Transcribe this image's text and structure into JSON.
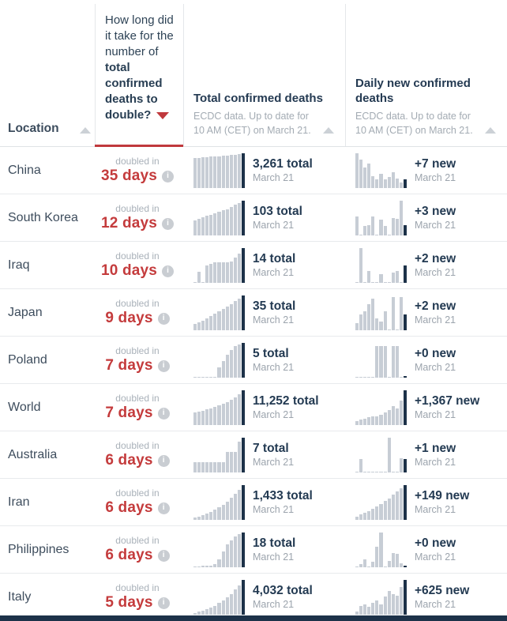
{
  "header": {
    "location_label": "Location",
    "question_regular": "How long did it take for the number of ",
    "question_bold": "total confirmed deaths to double?",
    "total_col_title": "Total confirmed deaths",
    "total_col_subtitle": "ECDC data. Up to date for 10 AM (CET) on March 21.",
    "new_col_title": "Daily new confirmed deaths",
    "new_col_subtitle": "ECDC data. Up to date for 10 AM (CET) on March 21.",
    "sort": {
      "active_column": "doubling-time",
      "direction": "descending"
    }
  },
  "labels": {
    "doubled_in_prefix": "doubled in",
    "info_icon_glyph": "i"
  },
  "colors": {
    "accent_red": "#c0393d",
    "text_navy": "#243a52",
    "bar_gray": "#c7cdd5",
    "bar_navy": "#1d3249",
    "muted_gray": "#a3abb3"
  },
  "rows": [
    {
      "location": "China",
      "days": "35 days",
      "total": "3,261 total",
      "total_date": "March 21",
      "new": "+7 new",
      "new_date": "March 21"
    },
    {
      "location": "South Korea",
      "days": "12 days",
      "total": "103 total",
      "total_date": "March 21",
      "new": "+3 new",
      "new_date": "March 21"
    },
    {
      "location": "Iraq",
      "days": "10 days",
      "total": "14 total",
      "total_date": "March 21",
      "new": "+2 new",
      "new_date": "March 21"
    },
    {
      "location": "Japan",
      "days": "9 days",
      "total": "35 total",
      "total_date": "March 21",
      "new": "+2 new",
      "new_date": "March 21"
    },
    {
      "location": "Poland",
      "days": "7 days",
      "total": "5 total",
      "total_date": "March 21",
      "new": "+0 new",
      "new_date": "March 21"
    },
    {
      "location": "World",
      "days": "7 days",
      "total": "11,252 total",
      "total_date": "March 21",
      "new": "+1,367 new",
      "new_date": "March 21"
    },
    {
      "location": "Australia",
      "days": "6 days",
      "total": "7 total",
      "total_date": "March 21",
      "new": "+1 new",
      "new_date": "March 21"
    },
    {
      "location": "Iran",
      "days": "6 days",
      "total": "1,433 total",
      "total_date": "March 21",
      "new": "+149 new",
      "new_date": "March 21"
    },
    {
      "location": "Philippines",
      "days": "6 days",
      "total": "18 total",
      "total_date": "March 21",
      "new": "+0 new",
      "new_date": "March 21"
    },
    {
      "location": "Italy",
      "days": "5 days",
      "total": "4,032 total",
      "total_date": "March 21",
      "new": "+625 new",
      "new_date": "March 21"
    }
  ],
  "chart_data": {
    "type": "table",
    "title": "How long did it take for the number of total confirmed deaths to double?",
    "columns": [
      "Location",
      "Doubling time (days)",
      "Total confirmed deaths (sparkline, as of March 21)",
      "Daily new confirmed deaths (sparkline, as of March 21)"
    ],
    "source_note": "ECDC data. Up to date for 10 AM (CET) on March 21.",
    "rows": [
      {
        "location": "China",
        "doubling_days": 35,
        "total_deaths": 3261,
        "new_deaths": 7,
        "total_spark": [
          86,
          87,
          88,
          89,
          90,
          91,
          92,
          93,
          94,
          95,
          96,
          97,
          100
        ],
        "new_spark": [
          100,
          82,
          58,
          70,
          35,
          25,
          42,
          25,
          32,
          45,
          28,
          15,
          25
        ]
      },
      {
        "location": "South Korea",
        "doubling_days": 12,
        "total_deaths": 103,
        "new_deaths": 3,
        "total_spark": [
          44,
          48,
          52,
          56,
          60,
          64,
          68,
          72,
          76,
          82,
          88,
          94,
          100
        ],
        "new_spark": [
          55,
          0,
          28,
          30,
          55,
          0,
          45,
          28,
          0,
          50,
          48,
          100,
          30
        ]
      },
      {
        "location": "Iraq",
        "doubling_days": 10,
        "total_deaths": 14,
        "new_deaths": 2,
        "total_spark": [
          0,
          32,
          0,
          50,
          55,
          58,
          58,
          58,
          60,
          62,
          72,
          85,
          100
        ],
        "new_spark": [
          0,
          100,
          0,
          35,
          0,
          0,
          25,
          0,
          0,
          30,
          35,
          0,
          50
        ]
      },
      {
        "location": "Japan",
        "doubling_days": 9,
        "total_deaths": 35,
        "new_deaths": 2,
        "total_spark": [
          18,
          22,
          27,
          33,
          40,
          47,
          54,
          61,
          68,
          76,
          84,
          92,
          100
        ],
        "new_spark": [
          20,
          45,
          55,
          75,
          90,
          35,
          25,
          55,
          0,
          95,
          0,
          95,
          45
        ]
      },
      {
        "location": "Poland",
        "doubling_days": 7,
        "total_deaths": 5,
        "new_deaths": 0,
        "total_spark": [
          0,
          0,
          0,
          0,
          0,
          0,
          30,
          48,
          65,
          80,
          90,
          95,
          100
        ],
        "new_spark": [
          0,
          0,
          0,
          0,
          0,
          90,
          90,
          90,
          0,
          90,
          90,
          0,
          0
        ]
      },
      {
        "location": "World",
        "doubling_days": 7,
        "total_deaths": 11252,
        "new_deaths": 1367,
        "total_spark": [
          36,
          39,
          42,
          45,
          48,
          52,
          56,
          61,
          66,
          72,
          79,
          88,
          100
        ],
        "new_spark": [
          12,
          15,
          18,
          22,
          26,
          24,
          30,
          36,
          44,
          54,
          48,
          70,
          100
        ]
      },
      {
        "location": "Australia",
        "doubling_days": 6,
        "total_deaths": 7,
        "new_deaths": 1,
        "total_spark": [
          30,
          30,
          30,
          30,
          30,
          30,
          30,
          30,
          58,
          58,
          58,
          88,
          100
        ],
        "new_spark": [
          0,
          38,
          0,
          0,
          0,
          0,
          0,
          0,
          100,
          0,
          0,
          42,
          38
        ]
      },
      {
        "location": "Iran",
        "doubling_days": 6,
        "total_deaths": 1433,
        "new_deaths": 149,
        "total_spark": [
          7,
          10,
          14,
          18,
          23,
          29,
          36,
          44,
          53,
          63,
          74,
          86,
          100
        ],
        "new_spark": [
          10,
          15,
          20,
          26,
          32,
          39,
          46,
          54,
          62,
          72,
          82,
          92,
          100
        ]
      },
      {
        "location": "Philippines",
        "doubling_days": 6,
        "total_deaths": 18,
        "new_deaths": 0,
        "total_spark": [
          3,
          3,
          4,
          4,
          5,
          8,
          22,
          45,
          65,
          78,
          88,
          95,
          100
        ],
        "new_spark": [
          0,
          8,
          22,
          0,
          15,
          60,
          100,
          0,
          18,
          42,
          38,
          12,
          0
        ]
      },
      {
        "location": "Italy",
        "doubling_days": 5,
        "total_deaths": 4032,
        "new_deaths": 625,
        "total_spark": [
          5,
          8,
          11,
          15,
          20,
          26,
          33,
          41,
          50,
          60,
          72,
          85,
          100
        ],
        "new_spark": [
          10,
          25,
          30,
          22,
          35,
          40,
          30,
          52,
          68,
          58,
          55,
          80,
          100
        ]
      }
    ]
  }
}
